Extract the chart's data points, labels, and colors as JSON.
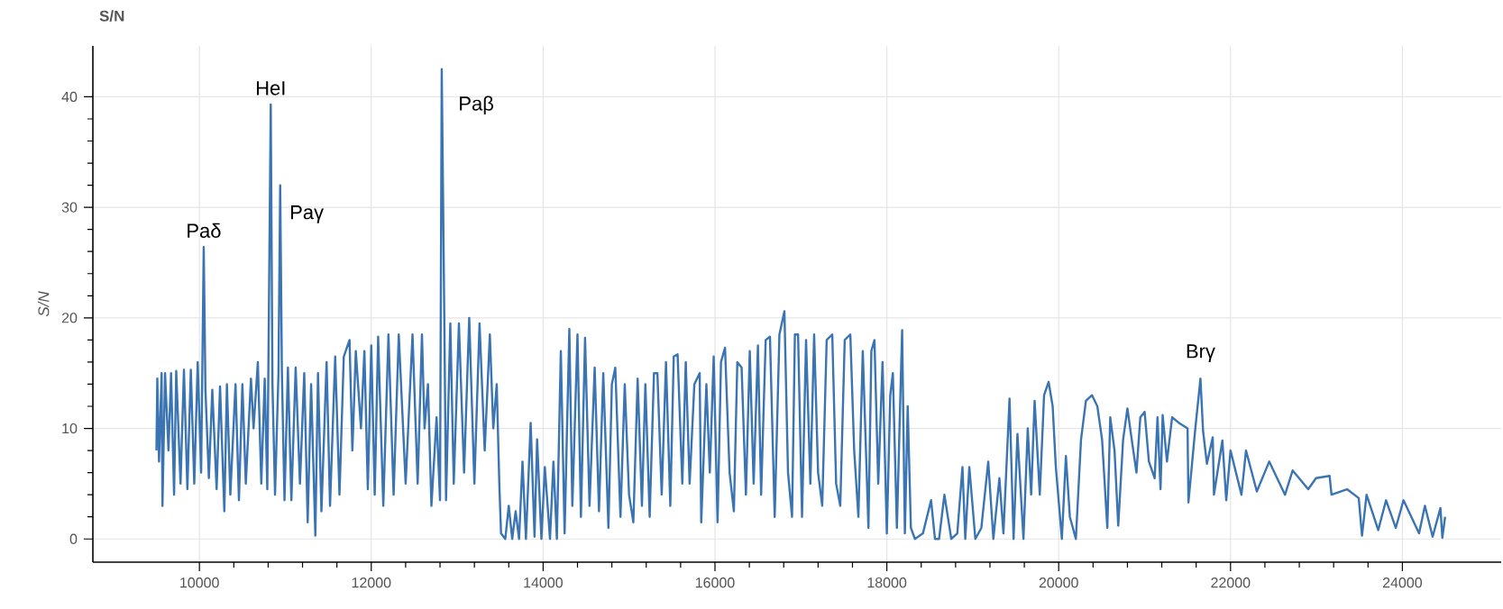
{
  "chart_data": {
    "type": "line",
    "title": "S/N",
    "ylabel": "*S/N*",
    "xlim": [
      8760,
      25150
    ],
    "ylim": [
      -2.1,
      44.6
    ],
    "xticks": [
      10000,
      12000,
      14000,
      16000,
      18000,
      20000,
      22000,
      24000
    ],
    "yticks": [
      0,
      10,
      20,
      30,
      40
    ],
    "grid": true,
    "marker": "none",
    "line_style": "solid",
    "annotations": [
      {
        "text": "Paδ",
        "x": 10050,
        "y": 26.4
      },
      {
        "text": "HeI",
        "x": 10830,
        "y": 39.3
      },
      {
        "text": "Paγ",
        "x": 10940,
        "y": 32
      },
      {
        "text": "Paβ",
        "x": 12820,
        "y": 42.5
      },
      {
        "text": "Brγ",
        "x": 21650,
        "y": 14.5
      }
    ],
    "series": [
      {
        "color": "#3a74b2",
        "x": [
          9500,
          9510,
          9530,
          9560,
          9570,
          9600,
          9640,
          9670,
          9705,
          9730,
          9780,
          9820,
          9860,
          9900,
          9940,
          9980,
          10020,
          10050,
          10070,
          10110,
          10150,
          10200,
          10240,
          10290,
          10320,
          10360,
          10420,
          10460,
          10500,
          10540,
          10600,
          10630,
          10680,
          10720,
          10760,
          10790,
          10830,
          10850,
          10880,
          10920,
          10940,
          10960,
          10990,
          11030,
          11070,
          11120,
          11170,
          11220,
          11260,
          11300,
          11349,
          11380,
          11420,
          11480,
          11520,
          11580,
          11630,
          11680,
          11747,
          11780,
          11820,
          11880,
          11920,
          11960,
          12000,
          12040,
          12080,
          12140,
          12200,
          12260,
          12320,
          12400,
          12480,
          12540,
          12590,
          12620,
          12660,
          12700,
          12760,
          12800,
          12820,
          12850,
          12870,
          12920,
          12960,
          13020,
          13080,
          13140,
          13200,
          13260,
          13320,
          13380,
          13420,
          13460,
          13490,
          13510,
          13560,
          13600,
          13640,
          13680,
          13720,
          13760,
          13800,
          13855,
          13900,
          13930,
          13980,
          14020,
          14080,
          14120,
          14160,
          14206,
          14250,
          14305,
          14340,
          14400,
          14440,
          14488,
          14540,
          14600,
          14650,
          14700,
          14760,
          14800,
          14840,
          14900,
          14950,
          15000,
          15050,
          15100,
          15150,
          15190,
          15240,
          15290,
          15330,
          15380,
          15430,
          15480,
          15520,
          15565,
          15620,
          15660,
          15705,
          15760,
          15822,
          15840,
          15900,
          15940,
          15985,
          16030,
          16070,
          16117,
          16170,
          16220,
          16260,
          16310,
          16360,
          16405,
          16450,
          16500,
          16537,
          16590,
          16640,
          16695,
          16750,
          16808,
          16850,
          16897,
          16930,
          16967,
          17013,
          17060,
          17110,
          17154,
          17200,
          17248,
          17300,
          17365,
          17410,
          17458,
          17510,
          17575,
          17620,
          17669,
          17720,
          17786,
          17820,
          17856,
          17900,
          17950,
          18000,
          18040,
          18070,
          18117,
          18178,
          18210,
          18243,
          18280,
          18327,
          18420,
          18515,
          18560,
          18608,
          18670,
          18750,
          18820,
          18880,
          18913,
          18960,
          19030,
          19100,
          19180,
          19240,
          19310,
          19357,
          19428,
          19475,
          19520,
          19590,
          19640,
          19680,
          19720,
          19780,
          19830,
          19883,
          19930,
          19967,
          20037,
          20084,
          20130,
          20200,
          20260,
          20317,
          20388,
          20450,
          20505,
          20566,
          20600,
          20650,
          20693,
          20750,
          20800,
          20850,
          20905,
          20950,
          21000,
          21050,
          21117,
          21150,
          21185,
          21210,
          21260,
          21320,
          21400,
          21500,
          21510,
          21590,
          21650,
          21680,
          21725,
          21793,
          21807,
          21905,
          21950,
          22000,
          22127,
          22180,
          22306,
          22450,
          22634,
          22723,
          22904,
          22995,
          23153,
          23175,
          23356,
          23492,
          23530,
          23583,
          23719,
          23810,
          23923,
          24013,
          24194,
          24262,
          24352,
          24443,
          24465,
          24497
        ],
        "values": [
          8,
          14.5,
          7,
          15,
          3,
          15,
          8,
          15,
          4,
          15.2,
          5,
          15.3,
          4.5,
          15.3,
          5,
          16,
          6,
          26.4,
          13.5,
          5.5,
          13.5,
          4.5,
          13.8,
          2.5,
          14,
          4,
          14,
          3.5,
          14,
          5,
          14.5,
          10,
          16,
          5,
          14.5,
          4.5,
          39.3,
          14,
          4,
          15,
          32,
          15,
          3.5,
          15.5,
          3.5,
          15.5,
          5,
          15,
          1.5,
          14,
          0.3,
          15,
          2.5,
          16,
          3,
          16.5,
          4,
          16.5,
          18,
          8,
          17,
          10,
          17,
          4.5,
          17.5,
          4,
          18.3,
          3,
          18.5,
          4,
          18.5,
          5,
          18.5,
          5,
          18.5,
          10,
          14,
          3,
          11,
          3.5,
          42.5,
          20,
          3.5,
          19.5,
          5,
          19.5,
          6,
          20,
          5,
          19.5,
          8,
          18.5,
          10,
          14,
          5,
          0.5,
          0,
          3,
          0,
          2.5,
          0,
          7,
          0,
          10.5,
          0.2,
          9,
          0,
          6.5,
          0,
          7,
          0,
          17,
          0.5,
          19,
          3,
          18.5,
          2,
          18.2,
          3,
          15.5,
          2.5,
          15,
          1,
          14,
          15.5,
          2,
          14,
          4,
          1.5,
          14.5,
          3,
          14,
          2,
          15,
          15,
          4,
          16,
          3,
          16.5,
          16.7,
          5,
          16,
          5,
          14,
          15,
          1.5,
          14,
          6,
          16.5,
          1.5,
          16,
          17.3,
          6,
          2.5,
          16,
          15.5,
          4,
          17,
          5,
          17.5,
          4,
          18,
          18.3,
          2,
          18.5,
          20.6,
          6,
          2,
          18.5,
          18.5,
          2,
          18,
          5,
          18.5,
          6,
          3,
          18,
          18.5,
          5,
          3,
          18,
          18.5,
          8,
          2,
          17,
          1,
          17,
          18,
          5,
          16,
          0.5,
          13,
          15,
          1,
          18.9,
          0.5,
          12,
          1,
          0,
          0.5,
          3.5,
          0,
          0,
          4,
          0,
          0.5,
          6.5,
          0,
          6.5,
          0,
          1,
          7,
          0,
          5.5,
          0.5,
          12.7,
          0,
          9.5,
          0,
          10,
          4,
          12.5,
          4,
          13,
          14.2,
          12,
          6.5,
          0,
          7.5,
          2,
          0,
          9,
          12.5,
          13,
          12,
          9,
          1,
          11,
          8,
          1.2,
          9,
          11.8,
          9,
          6,
          11,
          11.5,
          7,
          5.5,
          11,
          4.5,
          11.2,
          7,
          11,
          10.5,
          10,
          3.3,
          10,
          14.5,
          9.8,
          6.8,
          9.2,
          4,
          8.9,
          3.5,
          8,
          4,
          8,
          4.3,
          7,
          4,
          6.2,
          4.5,
          5.5,
          5.7,
          4,
          4.5,
          3.7,
          0.3,
          4,
          0.8,
          3.5,
          1,
          3.5,
          0.5,
          3,
          0.2,
          2.8,
          0.1,
          2
        ]
      }
    ]
  }
}
